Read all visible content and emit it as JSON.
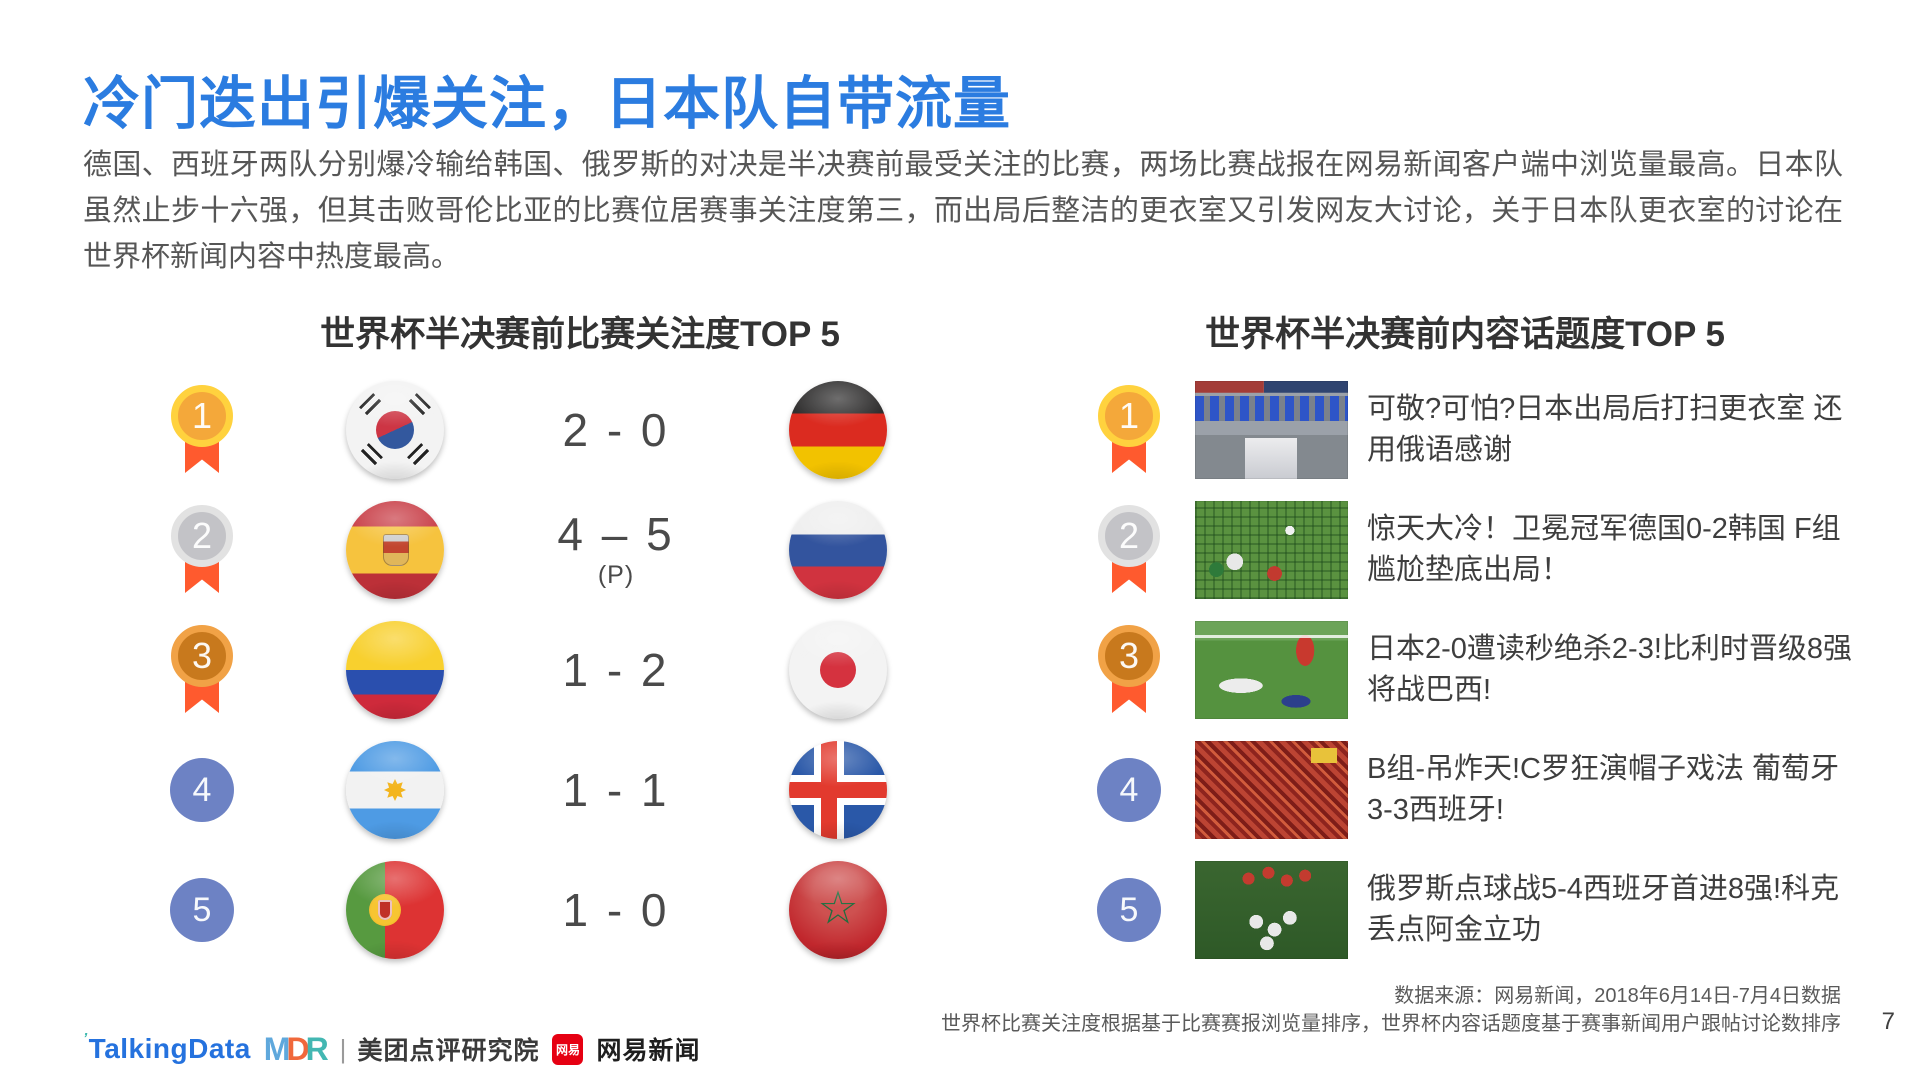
{
  "slide": {
    "title": "冷门迭出引爆关注，日本队自带流量",
    "paragraph": "德国、西班牙两队分别爆冷输给韩国、俄罗斯的对决是半决赛前最受关注的比赛，两场比赛战报在网易新闻客户端中浏览量最高。日本队虽然止步十六强，但其击败哥伦比亚的比赛位居赛事关注度第三，而出局后整洁的更衣室又引发网友大讨论，关于日本队更衣室的讨论在世界杯新闻内容中热度最高。",
    "page_number": "7"
  },
  "colors": {
    "accent_blue": "#2B7CE0",
    "ribbon_orange": "#FF5A2E",
    "medal_gold": "#FFD23E",
    "medal_silver": "#E2E2E2",
    "medal_bronze": "#F1A246",
    "rank_circle_blue": "#6D82C4",
    "netease_red": "#E60012"
  },
  "left_panel": {
    "title": "世界杯半决赛前比赛关注度TOP 5",
    "rows": [
      {
        "rank": "1",
        "medal": "gold",
        "home_flag": "south-korea",
        "score": "2 - 0",
        "note": "",
        "away_flag": "germany"
      },
      {
        "rank": "2",
        "medal": "silver",
        "home_flag": "spain",
        "score": "4 – 5",
        "note": "(P)",
        "away_flag": "russia"
      },
      {
        "rank": "3",
        "medal": "bronze",
        "home_flag": "colombia",
        "score": "1 - 2",
        "note": "",
        "away_flag": "japan"
      },
      {
        "rank": "4",
        "medal": "plain",
        "home_flag": "argentina",
        "score": "1 - 1",
        "note": "",
        "away_flag": "iceland"
      },
      {
        "rank": "5",
        "medal": "plain",
        "home_flag": "portugal",
        "score": "1 - 0",
        "note": "",
        "away_flag": "morocco"
      }
    ]
  },
  "right_panel": {
    "title": "世界杯半决赛前内容话题度TOP 5",
    "rows": [
      {
        "rank": "1",
        "medal": "gold",
        "thumb": "locker-room",
        "headline": "可敬?可怕?日本出局后打扫更衣室 还用俄语感谢"
      },
      {
        "rank": "2",
        "medal": "silver",
        "thumb": "goal-scene",
        "headline": "惊天大冷！卫冕冠军德国0-2韩国 F组尴尬垫底出局！"
      },
      {
        "rank": "3",
        "medal": "bronze",
        "thumb": "pitch-players",
        "headline": "日本2-0遭读秒绝杀2-3!比利时晋级8强将战巴西!"
      },
      {
        "rank": "4",
        "medal": "plain",
        "thumb": "fans-crowd",
        "headline": "B组-吊炸天!C罗狂演帽子戏法 葡萄牙3-3西班牙!"
      },
      {
        "rank": "5",
        "medal": "plain",
        "thumb": "celebration",
        "headline": "俄罗斯点球战5-4西班牙首进8强!科克丢点阿金立功"
      }
    ]
  },
  "footer": {
    "source_line1": "数据来源：网易新闻，2018年6月14日-7月4日数据",
    "source_line2": "世界杯比赛关注度根据基于比赛赛报浏览量排序，世界杯内容话题度基于赛事新闻用户跟帖讨论数排序",
    "logos": {
      "talkingdata_tick": "’",
      "talkingdata": "TalkingData",
      "mdr": "MDR",
      "divider": "|",
      "meituan": "美团点评研究院",
      "netease_badge": "网易",
      "netease": "网易新闻"
    }
  }
}
